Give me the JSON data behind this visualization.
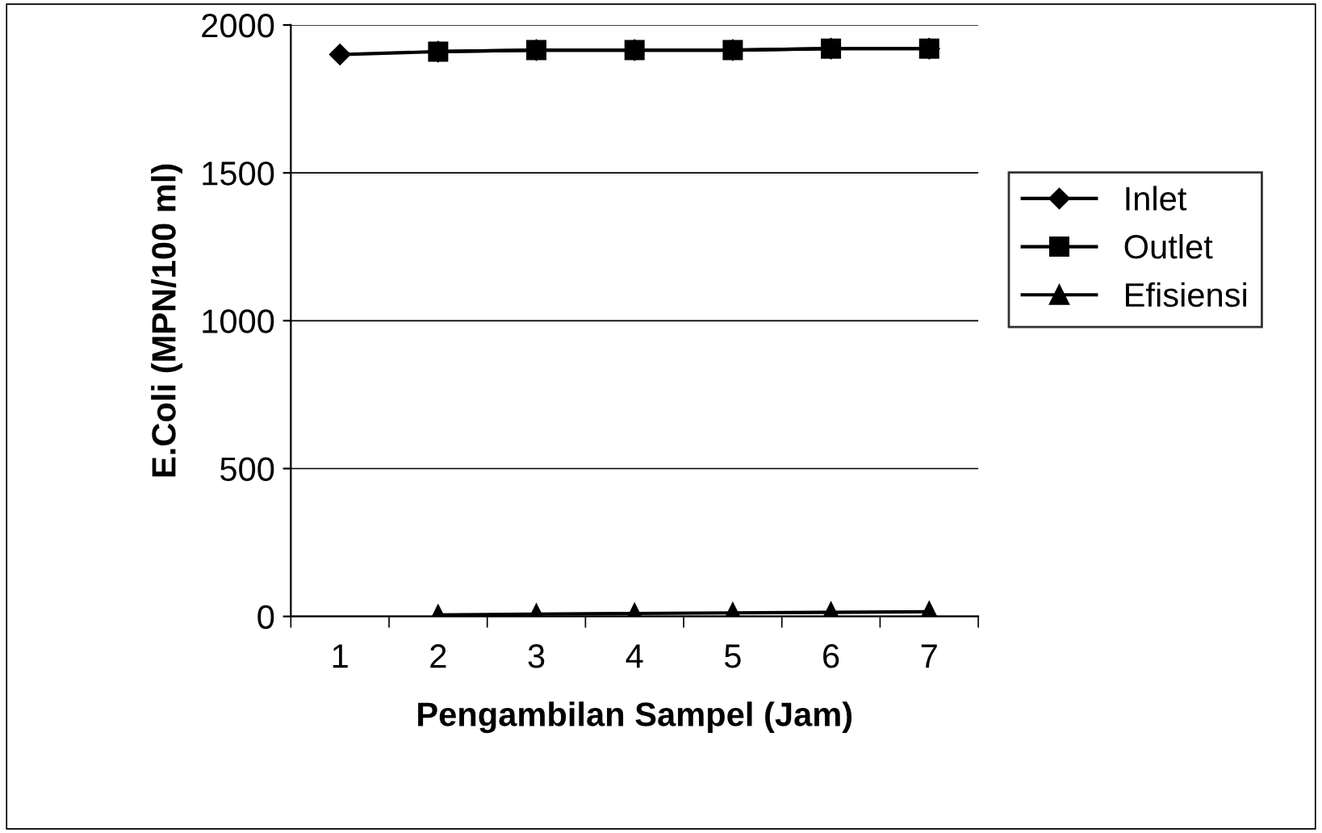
{
  "chart_data": {
    "type": "line",
    "xlabel": "Pengambilan Sampel (Jam)",
    "ylabel": "E.Coli (MPN/100 ml)",
    "categories": [
      "1",
      "2",
      "3",
      "4",
      "5",
      "6",
      "7"
    ],
    "series": [
      {
        "name": "Inlet",
        "color": "#000000",
        "marker": "diamond",
        "values": [
          1900,
          1910,
          1915,
          1915,
          1915,
          1920,
          1920
        ]
      },
      {
        "name": "Outlet",
        "color": "#000000",
        "marker": "square",
        "values": [
          null,
          1910,
          1915,
          1915,
          1915,
          1920,
          1920
        ]
      },
      {
        "name": "Efisiensi",
        "color": "#000000",
        "marker": "triangle",
        "values": [
          null,
          5,
          8,
          10,
          12,
          14,
          16
        ]
      }
    ],
    "ylim": [
      0,
      2000
    ],
    "yticks": [
      0,
      500,
      1000,
      1500,
      2000
    ],
    "grid": "y",
    "legend": "right",
    "line_style": "solid"
  }
}
